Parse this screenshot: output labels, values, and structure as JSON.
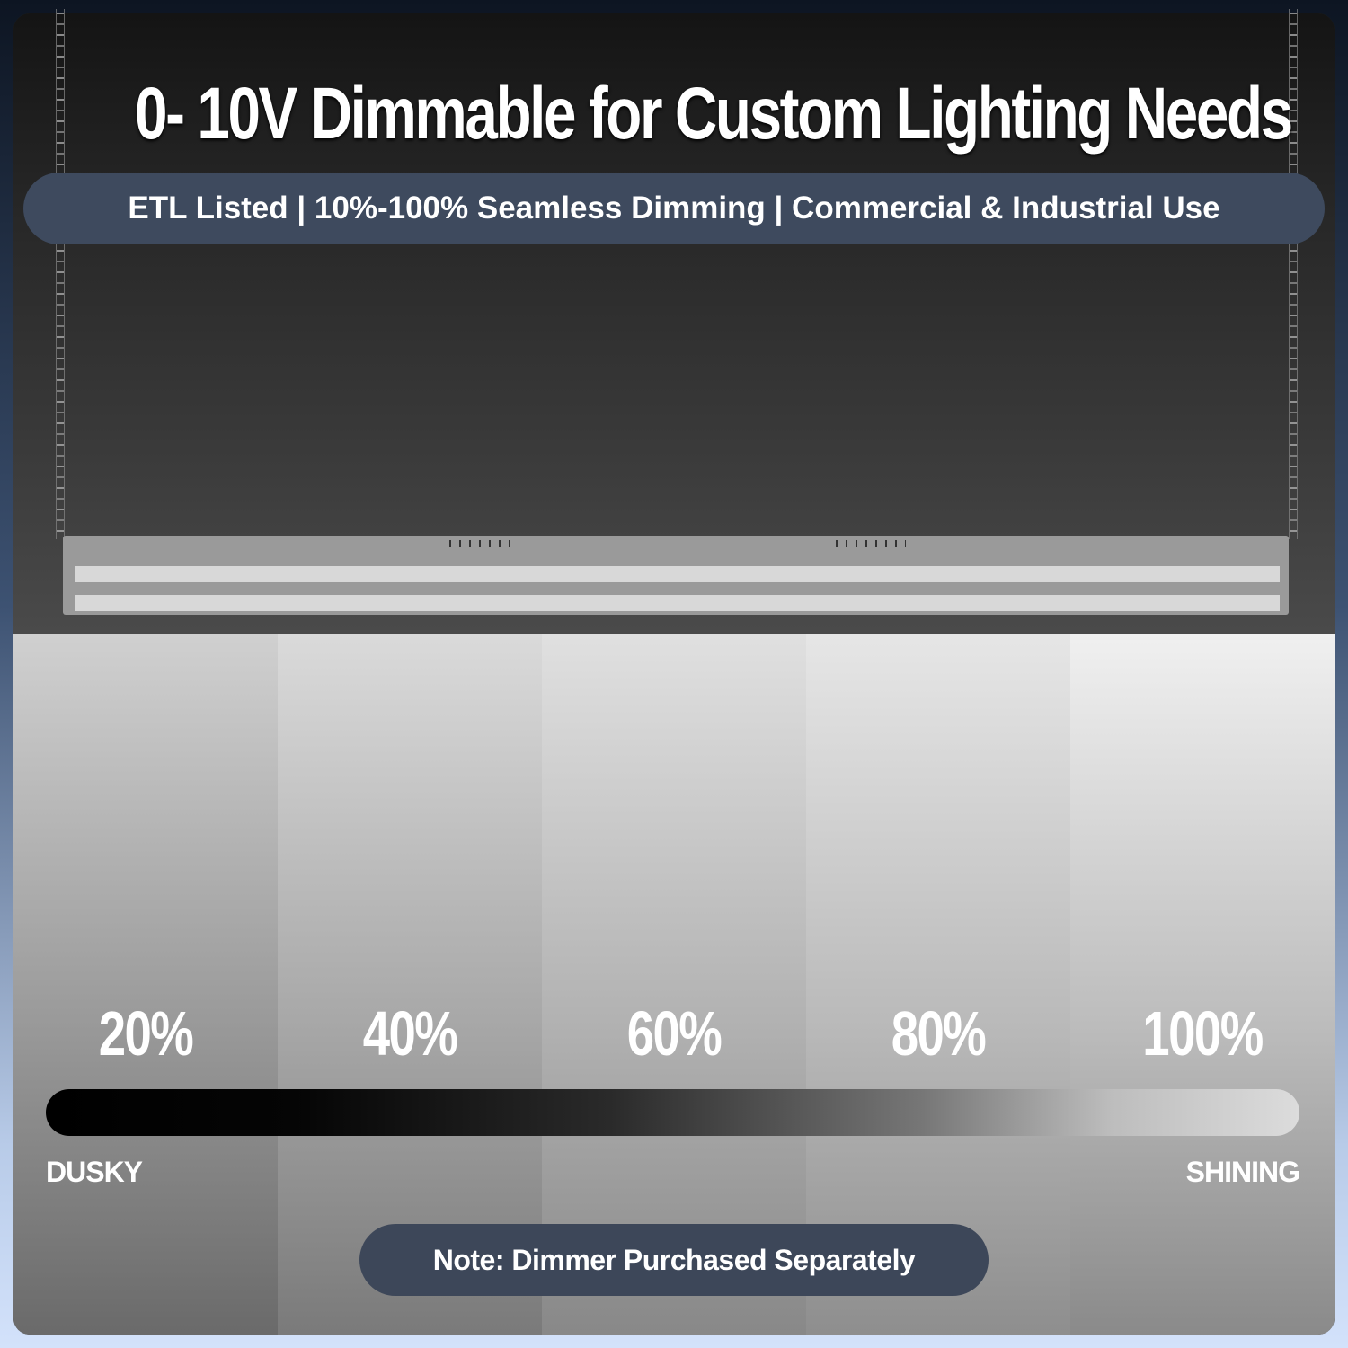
{
  "title": "0- 10V Dimmable for Custom Lighting Needs",
  "banner": "ETL Listed | 10%-100% Seamless Dimming | Commercial & Industrial Use",
  "levels": [
    {
      "label": "20%",
      "value": 20
    },
    {
      "label": "40%",
      "value": 40
    },
    {
      "label": "60%",
      "value": 60
    },
    {
      "label": "80%",
      "value": 80
    },
    {
      "label": "100%",
      "value": 100
    }
  ],
  "scale": {
    "min_label": "DUSKY",
    "max_label": "SHINING"
  },
  "note": "Note: Dimmer Purchased Separately",
  "colors": {
    "banner": "#3e4a5e",
    "note": "#3d4759",
    "text": "#ffffff"
  }
}
